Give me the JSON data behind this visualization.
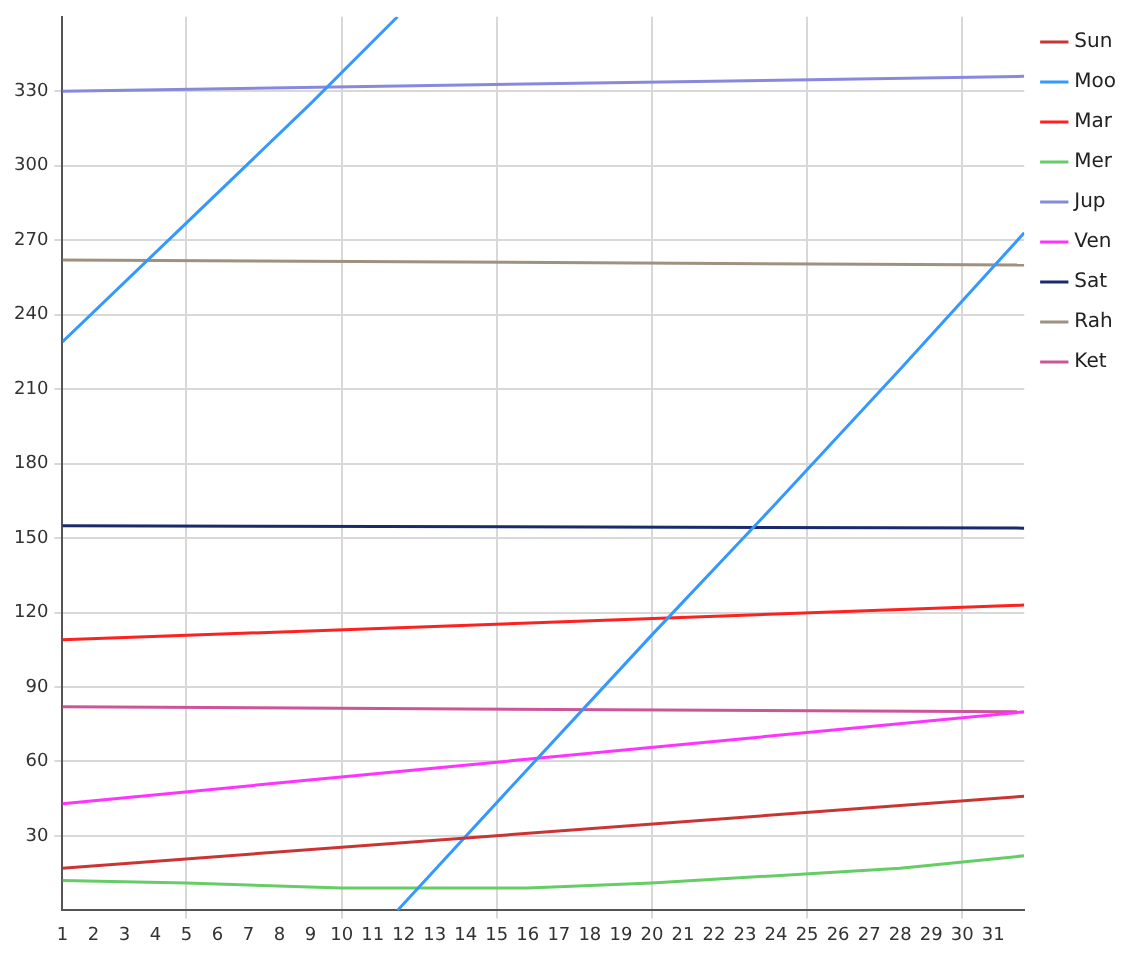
{
  "chart_data": {
    "type": "line",
    "x": [
      1,
      32
    ],
    "series": [
      {
        "name": "Sun",
        "color": "#cc3333",
        "values": [
          17,
          46
        ]
      },
      {
        "name": "Moo",
        "color": "#3399ff",
        "x": [
          1,
          5,
          9,
          11.8,
          11.8,
          16,
          20,
          24,
          28,
          32
        ],
        "values": [
          229,
          277,
          325,
          360,
          0,
          57,
          111,
          164,
          218,
          273
        ]
      },
      {
        "name": "Mar",
        "color": "#ff2020",
        "values": [
          109,
          123
        ]
      },
      {
        "name": "Mer",
        "color": "#66cc66",
        "x": [
          1,
          5,
          10,
          13,
          16,
          20,
          24,
          28,
          32
        ],
        "values": [
          12,
          11,
          9,
          9,
          9,
          11,
          14,
          17,
          22
        ]
      },
      {
        "name": "Jup",
        "color": "#8888dd",
        "values": [
          330,
          336
        ]
      },
      {
        "name": "Ven",
        "color": "#ff33ff",
        "values": [
          43,
          80
        ]
      },
      {
        "name": "Sat",
        "color": "#1a2a6c",
        "values": [
          155,
          154
        ]
      },
      {
        "name": "Rah",
        "color": "#a09080",
        "values": [
          262,
          260
        ]
      },
      {
        "name": "Ket",
        "color": "#cc5599",
        "values": [
          82,
          80
        ]
      }
    ],
    "xlim": [
      1,
      32
    ],
    "xticks": [
      1,
      2,
      3,
      4,
      5,
      6,
      7,
      8,
      9,
      10,
      11,
      12,
      13,
      14,
      15,
      16,
      17,
      18,
      19,
      20,
      21,
      22,
      23,
      24,
      25,
      26,
      27,
      28,
      29,
      30,
      31
    ],
    "ylim": [
      0,
      360
    ],
    "yticks": [
      30,
      60,
      90,
      120,
      150,
      180,
      210,
      240,
      270,
      300,
      330
    ],
    "grid": true,
    "legend": "top right",
    "marker": "none",
    "line_style": "solid"
  }
}
